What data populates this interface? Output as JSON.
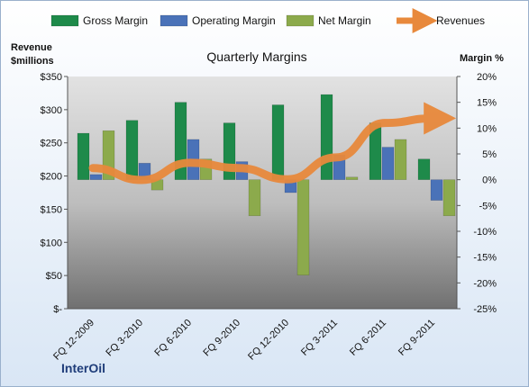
{
  "chart_data": {
    "type": "bar",
    "title": "Quarterly Margins",
    "company": "InterOil",
    "categories": [
      "FQ 12-2009",
      "FQ 3-2010",
      "FQ 6-2010",
      "FQ 9-2010",
      "FQ 12-2010",
      "FQ 3-2011",
      "FQ 6-2011",
      "FQ 9-2011"
    ],
    "series": [
      {
        "name": "Gross Margin",
        "axis": "right",
        "color": "#1e8a4a",
        "values": [
          9,
          11.5,
          15,
          11,
          14.5,
          16.5,
          11,
          4
        ]
      },
      {
        "name": "Operating Margin",
        "axis": "right",
        "color": "#4a72b8",
        "values": [
          1,
          3.2,
          7.8,
          3.5,
          -2.5,
          4.8,
          6.3,
          -4
        ]
      },
      {
        "name": "Net Margin",
        "axis": "right",
        "color": "#8caa4c",
        "values": [
          9.5,
          -2,
          4,
          -7,
          -18.5,
          0.5,
          7.8,
          -7
        ]
      },
      {
        "name": "Revenues",
        "type": "line",
        "axis": "left",
        "color": "#e8893c",
        "values": [
          212,
          194,
          220,
          212,
          195,
          228,
          280,
          287
        ]
      }
    ],
    "y_left": {
      "label_line1": "Revenue",
      "label_line2": "$millions",
      "min": 0,
      "max": 350,
      "ticks": [
        0,
        50,
        100,
        150,
        200,
        250,
        300,
        350
      ],
      "tick_labels": [
        "$-",
        "$50",
        "$100",
        "$150",
        "$200",
        "$250",
        "$300",
        "$350"
      ]
    },
    "y_right": {
      "label": "Margin %",
      "min": -25,
      "max": 20,
      "ticks": [
        20,
        15,
        10,
        5,
        0,
        -5,
        -10,
        -15,
        -20,
        -25
      ],
      "tick_labels": [
        "20%",
        "15%",
        "10%",
        "5%",
        "0%",
        "-5%",
        "-10%",
        "-15%",
        "-20%",
        "-25%"
      ]
    },
    "grid": false,
    "legend_position": "top"
  }
}
